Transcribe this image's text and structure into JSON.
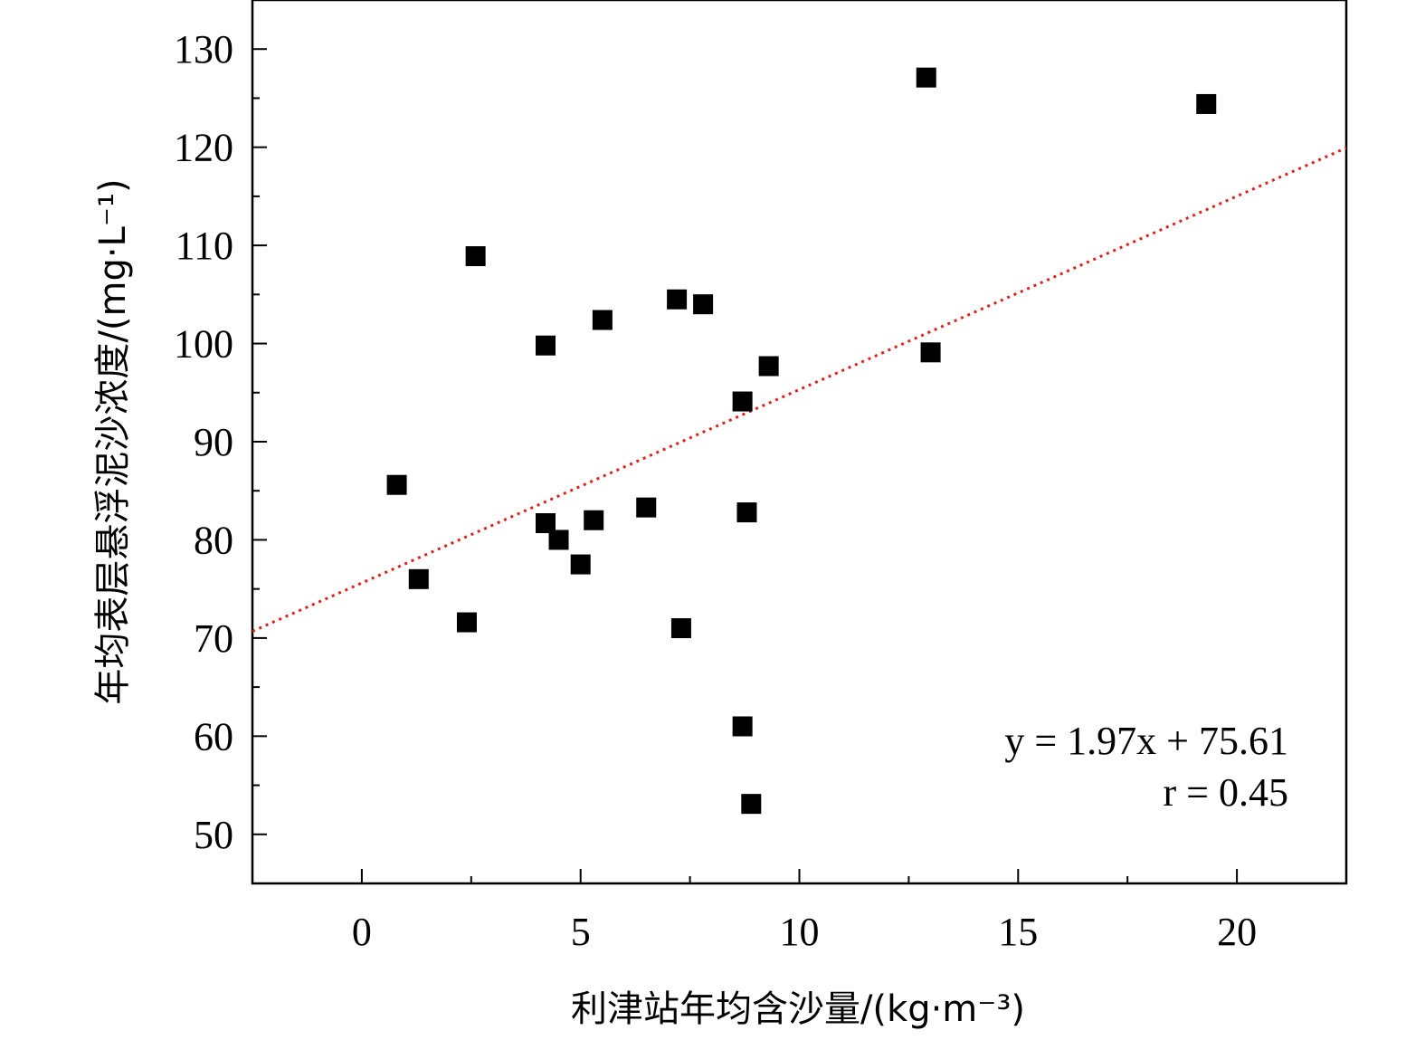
{
  "chart_data": {
    "type": "scatter",
    "xlabel": "利津站年均含沙量/(kg·m⁻³)",
    "ylabel": "年均表层悬浮泥沙浓度/(mg·L⁻¹)",
    "xlim": [
      -2.5,
      22.5
    ],
    "ylim": [
      45,
      135
    ],
    "xticks": [
      0,
      5,
      10,
      15,
      20
    ],
    "yticks": [
      50,
      60,
      70,
      80,
      90,
      100,
      110,
      120,
      130
    ],
    "grid": false,
    "marker_color": "#000000",
    "fit_line": {
      "slope": 1.97,
      "intercept": 75.61,
      "color": "#e0201e"
    },
    "annotations": {
      "equation": "y = 1.97x + 75.61",
      "r_value": "r = 0.45"
    },
    "points": [
      {
        "x": 0.8,
        "y": 85.6
      },
      {
        "x": 1.3,
        "y": 76.0
      },
      {
        "x": 2.4,
        "y": 71.6
      },
      {
        "x": 2.6,
        "y": 108.9
      },
      {
        "x": 4.2,
        "y": 81.7
      },
      {
        "x": 4.2,
        "y": 99.8
      },
      {
        "x": 4.5,
        "y": 80.0
      },
      {
        "x": 5.0,
        "y": 77.5
      },
      {
        "x": 5.3,
        "y": 82.0
      },
      {
        "x": 5.5,
        "y": 102.4
      },
      {
        "x": 6.5,
        "y": 83.3
      },
      {
        "x": 7.2,
        "y": 104.5
      },
      {
        "x": 7.3,
        "y": 71.0
      },
      {
        "x": 7.8,
        "y": 104.0
      },
      {
        "x": 8.7,
        "y": 94.1
      },
      {
        "x": 8.7,
        "y": 61.0
      },
      {
        "x": 8.8,
        "y": 82.8
      },
      {
        "x": 8.9,
        "y": 53.1
      },
      {
        "x": 9.3,
        "y": 97.7
      },
      {
        "x": 12.9,
        "y": 127.1
      },
      {
        "x": 13.0,
        "y": 99.1
      },
      {
        "x": 19.3,
        "y": 124.4
      }
    ]
  }
}
